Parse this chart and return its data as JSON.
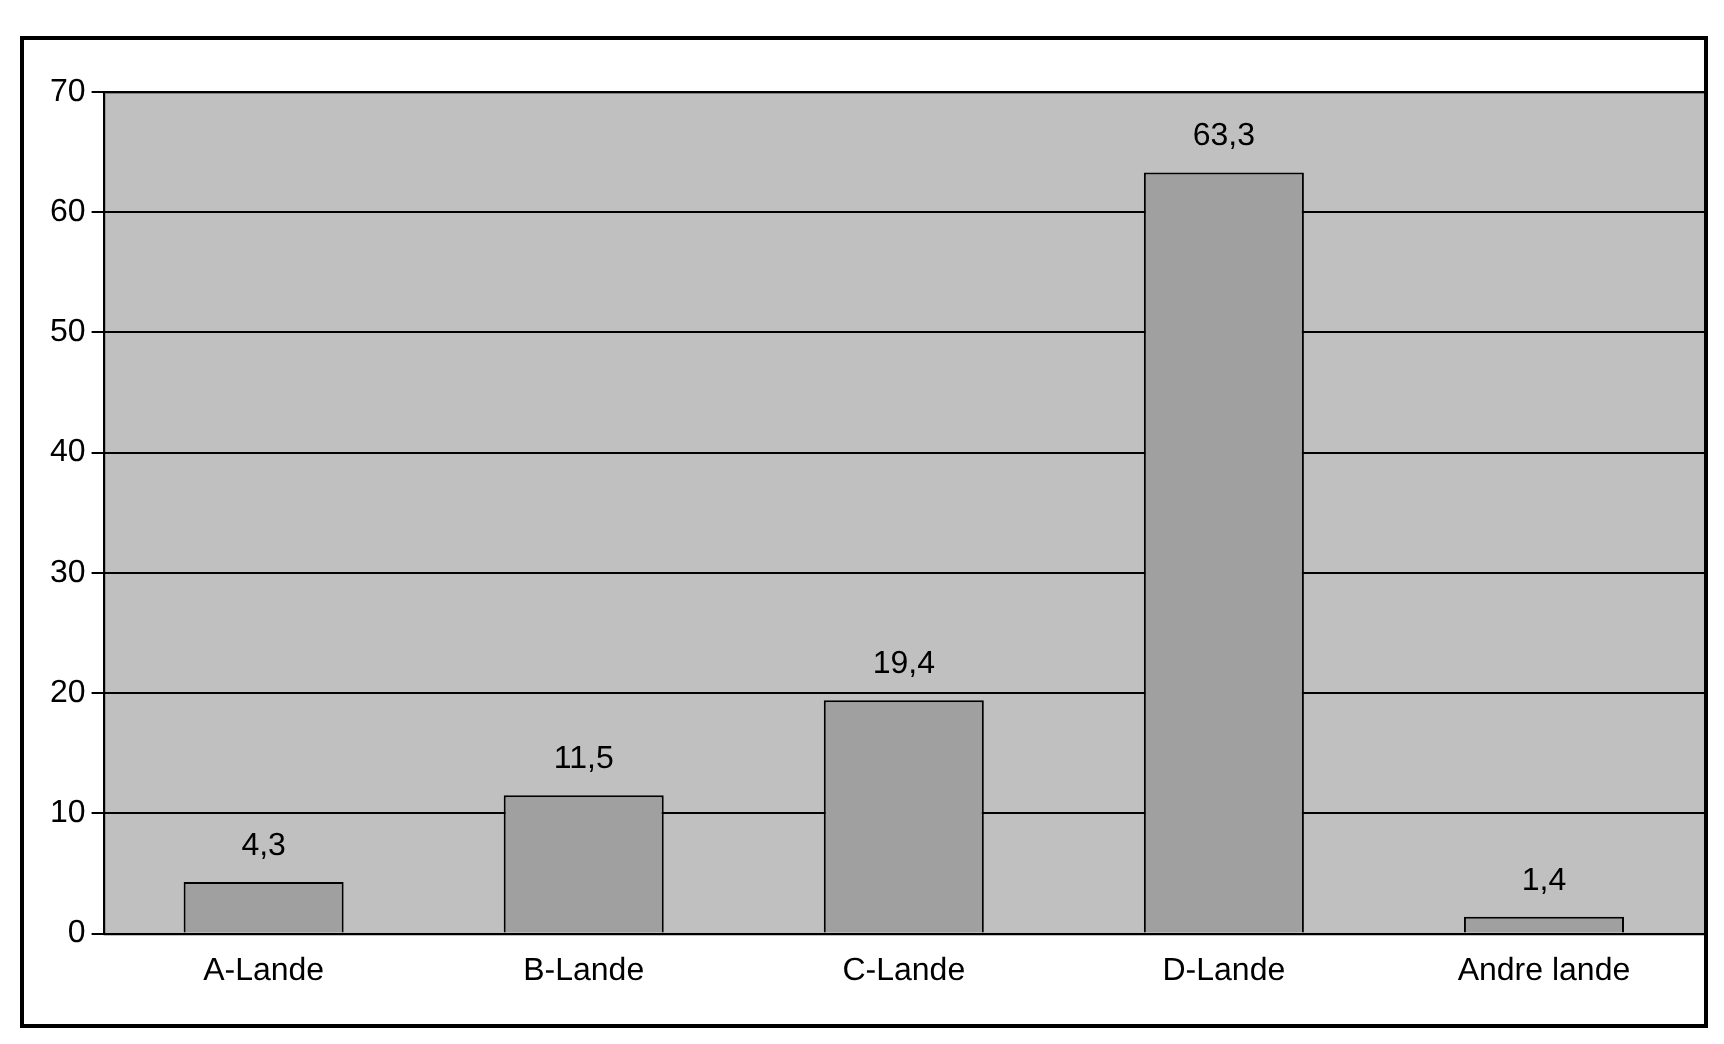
{
  "chart_data": {
    "type": "bar",
    "categories": [
      "A-Lande",
      "B-Lande",
      "C-Lande",
      "D-Lande",
      "Andre lande"
    ],
    "values": [
      4.3,
      11.5,
      19.4,
      63.3,
      1.4
    ],
    "color": "#a0a0a0",
    "value_labels": [
      "4,3",
      "11,5",
      "19,4",
      "63,3",
      "1,4"
    ],
    "ylim": [
      0,
      70
    ],
    "yticks": [
      0,
      10,
      20,
      30,
      40,
      50,
      60,
      70
    ],
    "grid": "y",
    "legend": false
  }
}
